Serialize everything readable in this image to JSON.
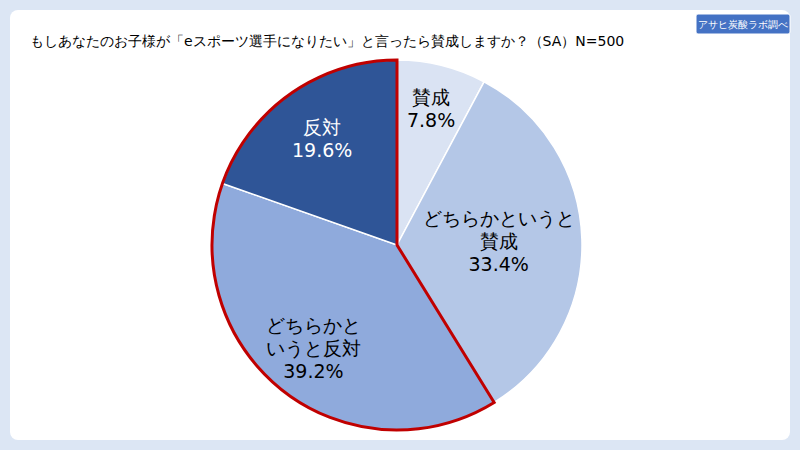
{
  "chart_data": {
    "type": "pie",
    "title": "もしあなたのお子様が「eスポーツ選手になりたい」と言ったら賛成しますか？（SA）N=500",
    "source": "アサヒ炭酸ラボ調べ",
    "categories": [
      "賛成",
      "どちらかというと賛成",
      "どちらかというと反対",
      "反対"
    ],
    "values": [
      7.8,
      33.4,
      39.2,
      19.6
    ],
    "value_labels": [
      "7.8%",
      "33.4%",
      "39.2%",
      "19.6%"
    ],
    "colors": [
      "#dae3f3",
      "#b4c7e7",
      "#8faadc",
      "#2f5597"
    ],
    "data_labels": true
  }
}
